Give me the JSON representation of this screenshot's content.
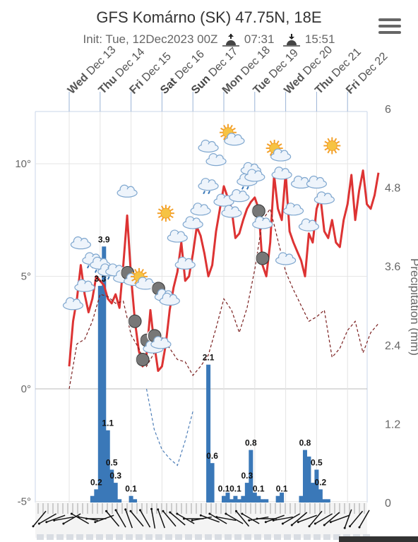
{
  "header": {
    "title": "GFS Komárno (SK) 47.75N, 18E",
    "init_label": "Init: Tue, 12Dec2023 00Z",
    "sunrise": "07:31",
    "sunset": "15:51",
    "sunrise_icon": "sunrise-icon",
    "sunset_icon": "sunset-icon",
    "menu_icon": "hamburger-menu-icon"
  },
  "chart_data": {
    "type": "line",
    "days": [
      {
        "dow": "Wed",
        "date": "Dec 13",
        "weekend": false
      },
      {
        "dow": "Thu",
        "date": "Dec 14",
        "weekend": false
      },
      {
        "dow": "Fri",
        "date": "Dec 15",
        "weekend": false
      },
      {
        "dow": "Sat",
        "date": "Dec 16",
        "weekend": true
      },
      {
        "dow": "Sun",
        "date": "Dec 17",
        "weekend": true
      },
      {
        "dow": "Mon",
        "date": "Dec 18",
        "weekend": false
      },
      {
        "dow": "Tue",
        "date": "Dec 19",
        "weekend": false
      },
      {
        "dow": "Wed",
        "date": "Dec 20",
        "weekend": false
      },
      {
        "dow": "Thu",
        "date": "Dec 21",
        "weekend": false
      },
      {
        "dow": "Fri",
        "date": "Dec 22",
        "weekend": false
      }
    ],
    "x_range_hours": [
      0,
      240
    ],
    "left_axis": {
      "ticks": [
        "10°",
        "5°",
        "0°",
        "-5°"
      ],
      "values": [
        10,
        5,
        0,
        -5
      ],
      "ylim": [
        -5,
        12.2
      ]
    },
    "right_axis": {
      "label": "Precipitation (mm)",
      "ticks": [
        "6",
        "4.8",
        "3.6",
        "2.4",
        "1.2",
        "0"
      ],
      "values": [
        6,
        4.8,
        3.6,
        2.4,
        1.2,
        0
      ],
      "ylim": [
        0,
        6
      ]
    },
    "series": [
      {
        "color": "#dd3333",
        "x": [
          0,
          3,
          6,
          9,
          12,
          15,
          18,
          21,
          24,
          27,
          30,
          33,
          36,
          39,
          42,
          45,
          48,
          51,
          54,
          57,
          60,
          63,
          66,
          69,
          72,
          75,
          78,
          81,
          84,
          87,
          90,
          93,
          96,
          99,
          102,
          105,
          108,
          111,
          114,
          117,
          120,
          123,
          126,
          129,
          132,
          135,
          138,
          141,
          144,
          147,
          150,
          153,
          156,
          159,
          162,
          165,
          168,
          171,
          174,
          177,
          180,
          183,
          186,
          189,
          192,
          195,
          198,
          201,
          204,
          207,
          210,
          213,
          216,
          219,
          222,
          225,
          228,
          231,
          234,
          237,
          240
        ],
        "y": [
          1,
          3,
          4,
          5.5,
          4.2,
          3.4,
          4,
          5,
          4.8,
          4.6,
          4,
          3.8,
          4.2,
          3.6,
          5.5,
          7.7,
          5,
          3,
          1.7,
          1,
          1.5,
          3.5,
          2,
          0.8,
          1,
          2,
          3.5,
          4.5,
          5.2,
          6.5,
          4.8,
          5,
          6,
          7.2,
          6.8,
          6,
          5,
          5.5,
          7,
          8,
          9,
          8.5,
          8,
          6.7,
          6.9,
          7.5,
          8,
          8.3,
          8.5,
          8,
          5.5,
          5,
          6.5,
          9.5,
          8,
          7.5,
          9.6,
          7,
          6.5,
          6.1,
          5.7,
          5,
          6.9,
          6.5,
          8,
          8.5,
          7,
          6.7,
          7.5,
          6.5,
          6.3,
          7.5,
          8.2,
          9.5,
          7.5,
          8.8,
          9.7,
          8.2,
          8,
          8.6,
          9.6
        ]
      },
      {
        "color": "#7a1f1f",
        "x": [
          0,
          6,
          12,
          18,
          24,
          30,
          36,
          42,
          48,
          54,
          60,
          66,
          72,
          78,
          84,
          90,
          96,
          102,
          108,
          114,
          120,
          126,
          132,
          138,
          144,
          150,
          156,
          162,
          168,
          174,
          180,
          186,
          192,
          198,
          204,
          210,
          216,
          222,
          228,
          234,
          240
        ],
        "y": [
          0,
          2,
          2.2,
          3,
          4.2,
          4.1,
          3.8,
          3.9,
          2.4,
          1.8,
          1,
          1.6,
          2.3,
          1.8,
          1.3,
          1.2,
          0.6,
          1,
          1.5,
          2.7,
          4,
          3.5,
          2.5,
          3.6,
          5.3,
          7.5,
          8,
          6.6,
          5.2,
          4.4,
          3.7,
          3,
          3.2,
          3.5,
          1.4,
          1.8,
          2.6,
          3,
          1.6,
          2.5,
          2.9
        ]
      },
      {
        "color": "#4f7fb8",
        "x": [
          60,
          66,
          72,
          78,
          84,
          90,
          96
        ],
        "y": [
          0,
          -1.8,
          -2.7,
          -3.1,
          -3.4,
          -2.3,
          -1
        ]
      }
    ],
    "precipitation_bars": {
      "color": "#3a78b8",
      "x": [
        18,
        21,
        24,
        27,
        30,
        33,
        36,
        39,
        48,
        51,
        108,
        111,
        120,
        123,
        126,
        129,
        132,
        135,
        138,
        141,
        144,
        147,
        150,
        153,
        162,
        165,
        180,
        183,
        186,
        189,
        192,
        195,
        198,
        201
      ],
      "values": [
        0.1,
        0.2,
        3.3,
        3.9,
        1.1,
        0.5,
        0.3,
        0.05,
        0.1,
        0.05,
        2.1,
        0.6,
        0.1,
        0.15,
        0.05,
        0.1,
        0.05,
        0.1,
        0.3,
        0.8,
        0.15,
        0.1,
        0.05,
        0.05,
        0.1,
        0.15,
        0.1,
        0.8,
        0.7,
        0.3,
        0.5,
        0.2,
        0.05,
        0.05
      ]
    },
    "data_labels": [
      {
        "x": 27,
        "text": "3.9",
        "value": 3.9
      },
      {
        "x": 24,
        "text": "3.3",
        "value": 3.3
      },
      {
        "x": 30,
        "text": "1.1",
        "value": 1.1
      },
      {
        "x": 21,
        "text": "0.2",
        "value": 0.2
      },
      {
        "x": 33,
        "text": "0.5",
        "value": 0.5
      },
      {
        "x": 36,
        "text": "0.3",
        "value": 0.3
      },
      {
        "x": 48,
        "text": "0.1",
        "value": 0.1
      },
      {
        "x": 108,
        "text": "2.1",
        "value": 2.1
      },
      {
        "x": 111,
        "text": "0.6",
        "value": 0.6
      },
      {
        "x": 120,
        "text": "0.1",
        "value": 0.1
      },
      {
        "x": 129,
        "text": "0.1",
        "value": 0.1
      },
      {
        "x": 138,
        "text": "0.3",
        "value": 0.3
      },
      {
        "x": 141,
        "text": "0.8",
        "value": 0.8
      },
      {
        "x": 147,
        "text": "0.1",
        "value": 0.1
      },
      {
        "x": 165,
        "text": "0.1",
        "value": 0.1
      },
      {
        "x": 183,
        "text": "0.8",
        "value": 0.8
      },
      {
        "x": 192,
        "text": "0.5",
        "value": 0.5
      },
      {
        "x": 195,
        "text": "0.2",
        "value": 0.2
      }
    ],
    "weather_icons": [
      {
        "x": 3,
        "y": 3.8,
        "icon": "cloud-icon"
      },
      {
        "x": 9,
        "y": 6.5,
        "icon": "cloud-icon"
      },
      {
        "x": 12,
        "y": 4.6,
        "icon": "cloud-icon"
      },
      {
        "x": 18,
        "y": 5.8,
        "icon": "rain-cloud-icon"
      },
      {
        "x": 24,
        "y": 5.6,
        "icon": "rain-cloud-icon"
      },
      {
        "x": 30,
        "y": 5.3,
        "icon": "rain-cloud-icon"
      },
      {
        "x": 36,
        "y": 5.3,
        "icon": "cloud-icon"
      },
      {
        "x": 42,
        "y": 5,
        "icon": "cloud-icon"
      },
      {
        "x": 45,
        "y": 8.8,
        "icon": "cloud-icon"
      },
      {
        "x": 48,
        "y": 5,
        "icon": "moon-cloud-icon"
      },
      {
        "x": 51,
        "y": 3,
        "icon": "moon-icon"
      },
      {
        "x": 57,
        "y": 4.8,
        "icon": "sun-cloud-icon"
      },
      {
        "x": 57,
        "y": 1.3,
        "icon": "moon-icon"
      },
      {
        "x": 63,
        "y": 2,
        "icon": "moon-cloud-icon"
      },
      {
        "x": 69,
        "y": 2.2,
        "icon": "moon-cloud-icon"
      },
      {
        "x": 72,
        "y": 4.3,
        "icon": "moon-cloud-icon"
      },
      {
        "x": 75,
        "y": 7.8,
        "icon": "sun-icon"
      },
      {
        "x": 78,
        "y": 4,
        "icon": "cloud-icon"
      },
      {
        "x": 84,
        "y": 6.8,
        "icon": "cloud-icon"
      },
      {
        "x": 90,
        "y": 5.6,
        "icon": "cloud-icon"
      },
      {
        "x": 96,
        "y": 7.4,
        "icon": "cloud-icon"
      },
      {
        "x": 102,
        "y": 8,
        "icon": "cloud-icon"
      },
      {
        "x": 108,
        "y": 9.1,
        "icon": "rain-cloud-icon"
      },
      {
        "x": 108,
        "y": 10.8,
        "icon": "cloud-icon"
      },
      {
        "x": 114,
        "y": 10.2,
        "icon": "cloud-icon"
      },
      {
        "x": 120,
        "y": 8.4,
        "icon": "cloud-icon"
      },
      {
        "x": 126,
        "y": 11.2,
        "icon": "sun-cloud-icon"
      },
      {
        "x": 126,
        "y": 7.9,
        "icon": "cloud-icon"
      },
      {
        "x": 132,
        "y": 8.6,
        "icon": "cloud-icon"
      },
      {
        "x": 138,
        "y": 9.3,
        "icon": "rain-cloud-icon"
      },
      {
        "x": 141,
        "y": 9.8,
        "icon": "cloud-icon"
      },
      {
        "x": 144,
        "y": 9.5,
        "icon": "cloud-icon"
      },
      {
        "x": 147,
        "y": 7.9,
        "icon": "moon-icon"
      },
      {
        "x": 150,
        "y": 7.4,
        "icon": "cloud-icon"
      },
      {
        "x": 150,
        "y": 5.8,
        "icon": "moon-icon"
      },
      {
        "x": 162,
        "y": 10.5,
        "icon": "sun-cloud-icon"
      },
      {
        "x": 165,
        "y": 9.6,
        "icon": "cloud-icon"
      },
      {
        "x": 168,
        "y": 5.8,
        "icon": "cloud-icon"
      },
      {
        "x": 174,
        "y": 8,
        "icon": "cloud-icon"
      },
      {
        "x": 180,
        "y": 9.2,
        "icon": "cloud-icon"
      },
      {
        "x": 186,
        "y": 7.3,
        "icon": "cloud-icon"
      },
      {
        "x": 192,
        "y": 9.2,
        "icon": "cloud-icon"
      },
      {
        "x": 198,
        "y": 8.5,
        "icon": "cloud-icon"
      },
      {
        "x": 204,
        "y": 10.8,
        "icon": "sun-icon"
      }
    ],
    "wind_barbs_hours": [
      0,
      6,
      12,
      18,
      24,
      30,
      36,
      42,
      48,
      54,
      60,
      66,
      72,
      78,
      84,
      90,
      96,
      102,
      108,
      114,
      120,
      126,
      132,
      138,
      144,
      150,
      156,
      162,
      168,
      174,
      180,
      186,
      192,
      198,
      204,
      210,
      216,
      222,
      228,
      234,
      240
    ],
    "wind_dir_deg": [
      220,
      240,
      250,
      260,
      240,
      300,
      280,
      270,
      250,
      320,
      330,
      340,
      320,
      330,
      350,
      340,
      320,
      310,
      300,
      270,
      260,
      290,
      300,
      280,
      300,
      320,
      300,
      260,
      270,
      250,
      260,
      240,
      230,
      250,
      220,
      240,
      230,
      250,
      200,
      220,
      210
    ],
    "grid": true,
    "legend": "none"
  }
}
